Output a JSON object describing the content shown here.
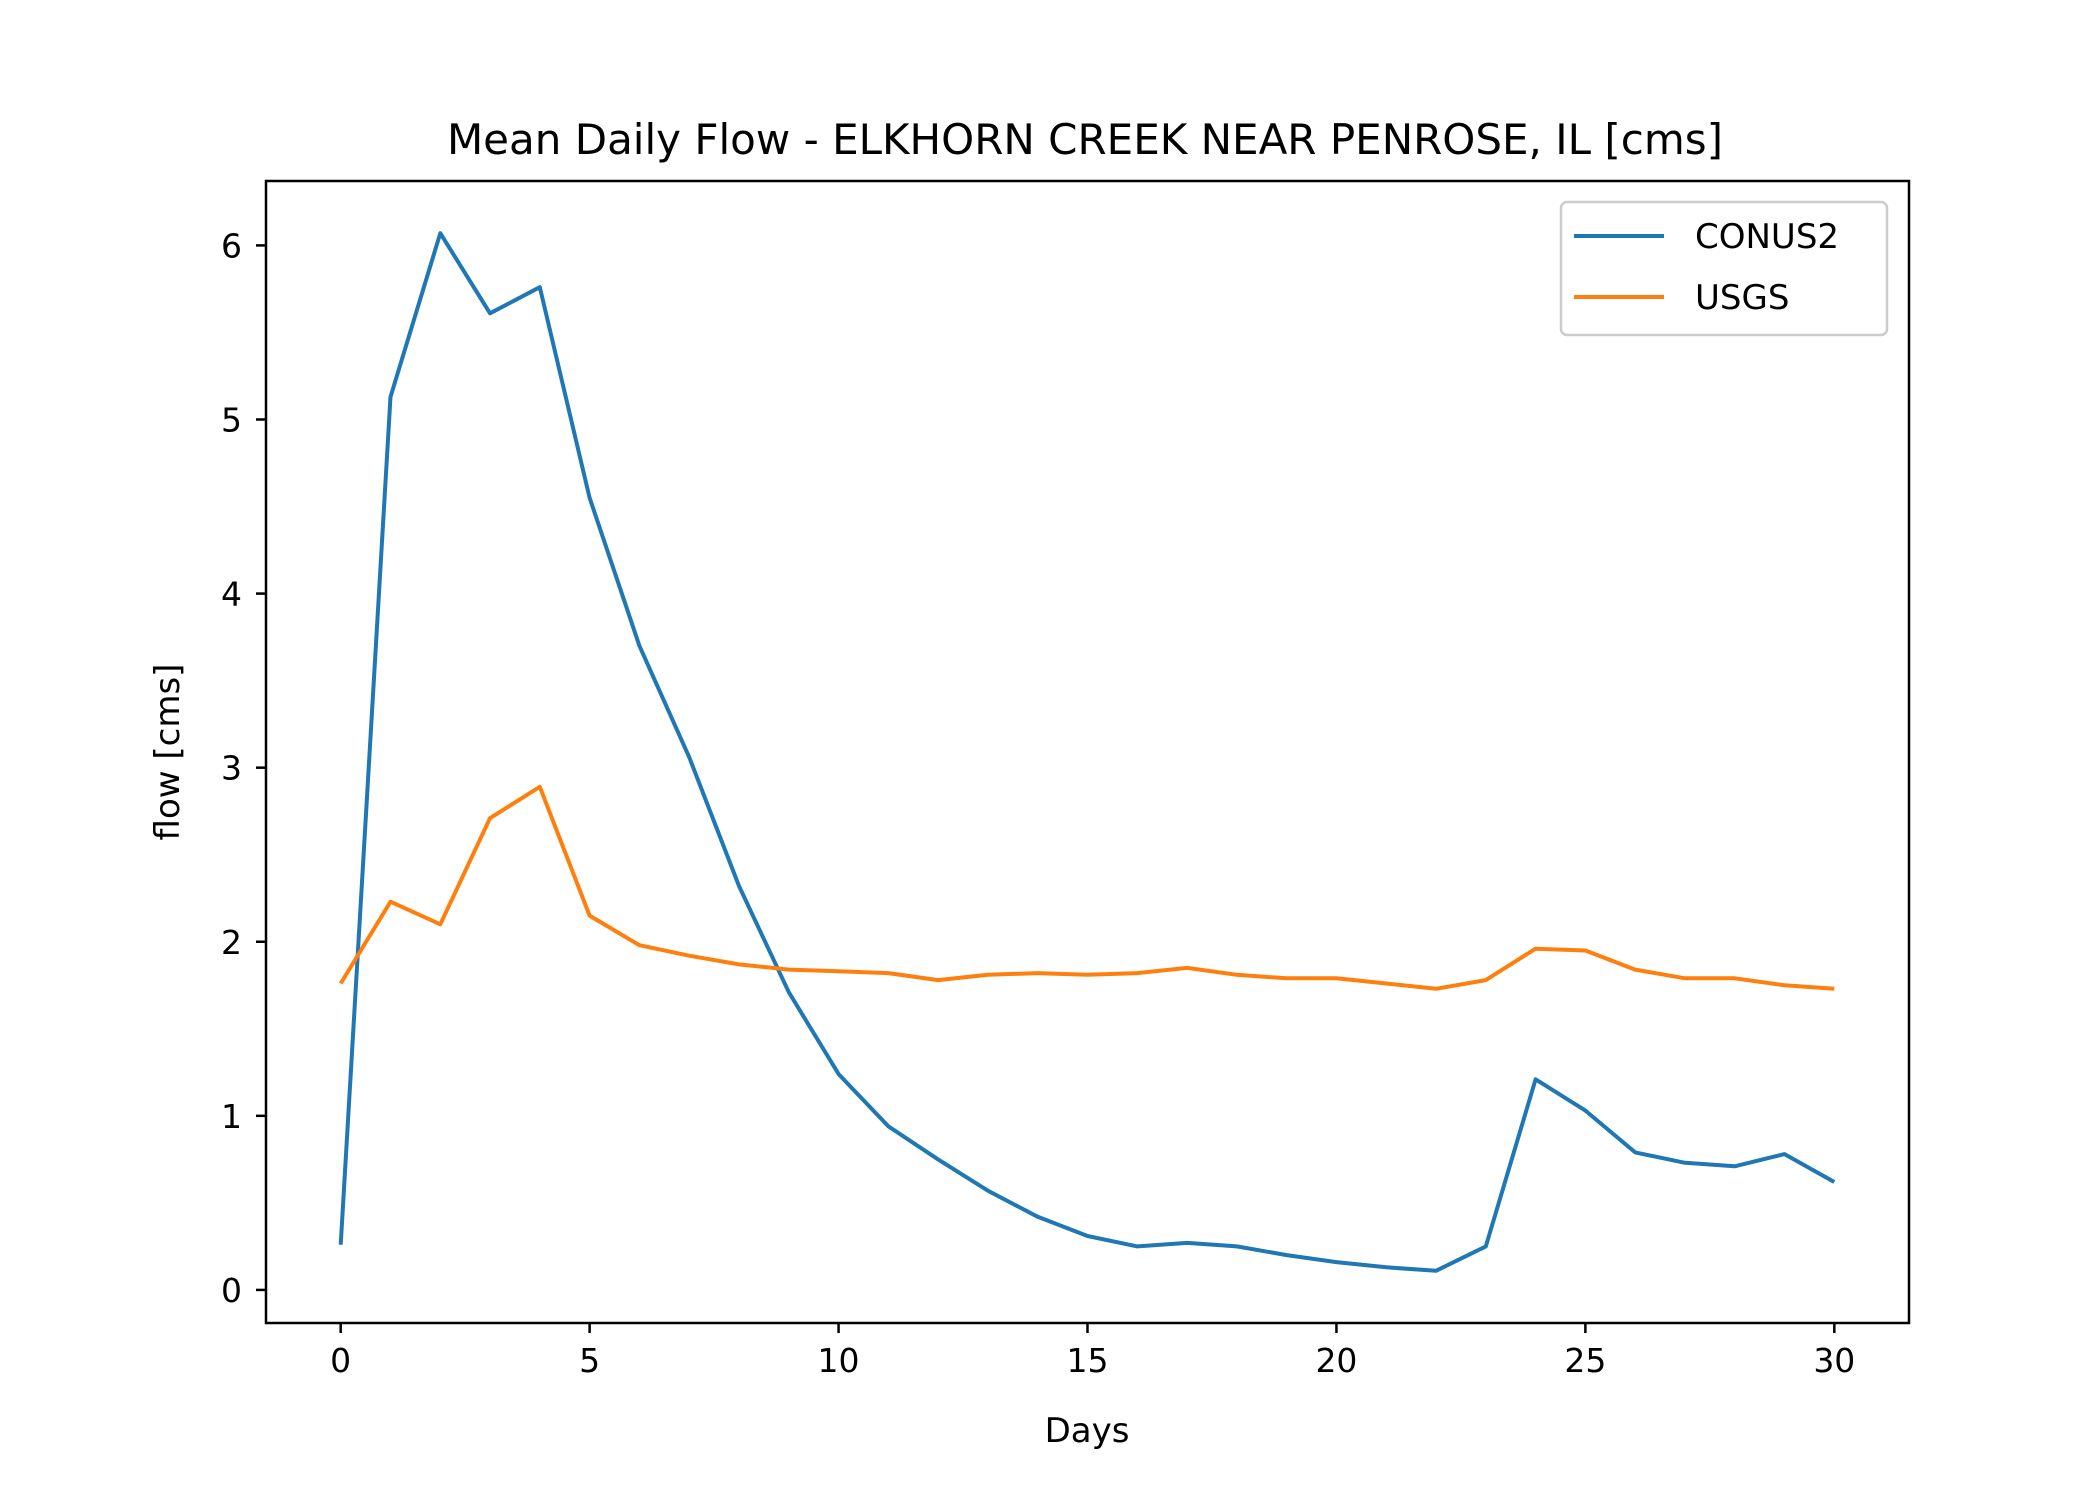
{
  "chart_data": {
    "type": "line",
    "title": "Mean Daily Flow - ELKHORN CREEK NEAR PENROSE, IL [cms]",
    "xlabel": "Days",
    "ylabel": "flow [cms]",
    "xlim": [
      -1.5,
      31.5
    ],
    "ylim": [
      -0.19,
      6.37
    ],
    "xticks": [
      0,
      5,
      10,
      15,
      20,
      25,
      30
    ],
    "xtick_labels": [
      "0",
      "5",
      "10",
      "15",
      "20",
      "25",
      "30"
    ],
    "yticks": [
      0,
      1,
      2,
      3,
      4,
      5,
      6
    ],
    "ytick_labels": [
      "0",
      "1",
      "2",
      "3",
      "4",
      "5",
      "6"
    ],
    "grid": false,
    "legend_position": "top-right",
    "x": [
      0,
      1,
      2,
      3,
      4,
      5,
      6,
      7,
      8,
      9,
      10,
      11,
      12,
      13,
      14,
      15,
      16,
      17,
      18,
      19,
      20,
      21,
      22,
      23,
      24,
      25,
      26,
      27,
      28,
      29,
      30
    ],
    "series": [
      {
        "name": "CONUS2",
        "color": "#1f77b4",
        "values": [
          0.26,
          5.13,
          6.07,
          5.61,
          5.76,
          4.55,
          3.7,
          3.06,
          2.32,
          1.71,
          1.24,
          0.94,
          0.75,
          0.57,
          0.42,
          0.31,
          0.25,
          0.27,
          0.25,
          0.2,
          0.16,
          0.13,
          0.11,
          0.25,
          1.21,
          1.03,
          0.79,
          0.73,
          0.71,
          0.78,
          0.62
        ]
      },
      {
        "name": "USGS",
        "color": "#ff7f0e",
        "values": [
          1.76,
          2.23,
          2.1,
          2.71,
          2.89,
          2.15,
          1.98,
          1.92,
          1.87,
          1.84,
          1.83,
          1.82,
          1.78,
          1.81,
          1.82,
          1.81,
          1.82,
          1.85,
          1.81,
          1.79,
          1.79,
          1.76,
          1.73,
          1.78,
          1.96,
          1.95,
          1.84,
          1.79,
          1.79,
          1.75,
          1.73
        ]
      }
    ]
  }
}
